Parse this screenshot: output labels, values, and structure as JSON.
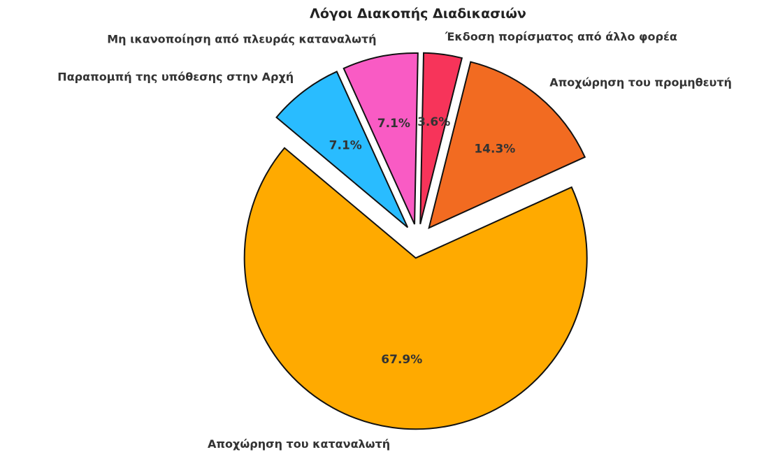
{
  "chart_data": {
    "type": "pie",
    "title": "Λόγοι Διακοπής Διαδικασιών",
    "categories": [
      "Αποχώρηση του καταναλωτή",
      "Αποχώρηση του προμηθευτή",
      "Έκδοση πορίσματος από άλλο φορέα",
      "Μη ικανοποίηση από πλευράς καταναλωτή",
      "Παραπομπή της υπόθεσης στην Αρχή"
    ],
    "values": [
      67.9,
      14.3,
      3.6,
      7.1,
      7.1
    ],
    "value_labels": [
      "67.9%",
      "14.3%",
      "3.6%",
      "7.1%",
      "7.1%"
    ],
    "colors": [
      "#FFAA00",
      "#F26B21",
      "#F7345A",
      "#F95BC4",
      "#29BCFF"
    ]
  }
}
